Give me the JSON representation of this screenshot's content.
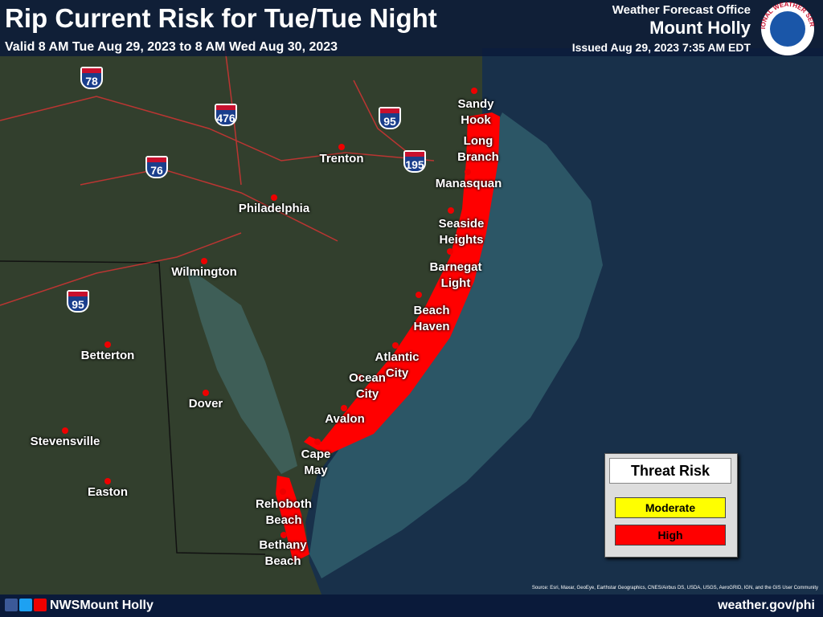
{
  "header": {
    "title": "Rip Current Risk for Tue/Tue Night",
    "subtitle": "Valid 8 AM Tue Aug 29, 2023 to 8 AM Wed Aug 30, 2023",
    "office_label": "Weather Forecast Office",
    "office_name": "Mount Holly",
    "issued": "Issued Aug 29, 2023 7:35 AM EDT",
    "logo_text": "NATIONAL WEATHER SERVICE"
  },
  "highways": [
    {
      "label": "78"
    },
    {
      "label": "476"
    },
    {
      "label": "95"
    },
    {
      "label": "76"
    },
    {
      "label": "195"
    },
    {
      "label": "95"
    }
  ],
  "places": [
    {
      "label": "Sandy Hook"
    },
    {
      "label": "Long Branch"
    },
    {
      "label": "Manasquan"
    },
    {
      "label": "Seaside Heights"
    },
    {
      "label": "Barnegat Light"
    },
    {
      "label": "Beach Haven"
    },
    {
      "label": "Atlantic City"
    },
    {
      "label": "Ocean City"
    },
    {
      "label": "Avalon"
    },
    {
      "label": "Cape May"
    },
    {
      "label": "Rehoboth Beach"
    },
    {
      "label": "Bethany Beach"
    },
    {
      "label": "Trenton"
    },
    {
      "label": "Philadelphia"
    },
    {
      "label": "Wilmington"
    },
    {
      "label": "Betterton"
    },
    {
      "label": "Dover"
    },
    {
      "label": "Stevensville"
    },
    {
      "label": "Easton"
    }
  ],
  "legend": {
    "title": "Threat Risk",
    "items": [
      {
        "label": "Moderate",
        "color": "#ffff00"
      },
      {
        "label": "High",
        "color": "#ff0000"
      }
    ]
  },
  "source": "Source: Esri, Maxar, GeoEye, Earthstar Geographics, CNES/Airbus DS, USDA, USGS, AeroGRID, IGN, and the GIS User Community",
  "footer": {
    "social": "NWSMount Holly",
    "url": "weather.gov/phi"
  }
}
